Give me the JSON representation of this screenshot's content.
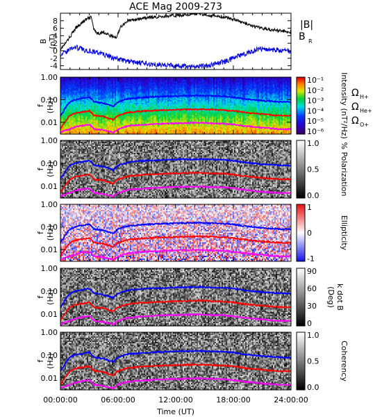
{
  "chart_data": {
    "type": "line",
    "title": "ACE Mag 2009-273",
    "xlabel": "Time (UT)",
    "x_ticks": [
      "00:00:00",
      "06:00:00",
      "12:00:00",
      "18:00:00",
      "24:00:00"
    ],
    "x_range_hours": [
      0,
      24
    ],
    "panels": [
      {
        "kind": "line",
        "ylabel": "B",
        "yunit": "(nT)",
        "ylim": [
          -5,
          10
        ],
        "yticks": [
          "8",
          "6",
          "4",
          "2",
          "0",
          "-2",
          "-4"
        ],
        "series": [
          {
            "name": "|B|",
            "color": "#000000",
            "x": [
              0,
              0.4,
              0.8,
              1.2,
              1.6,
              2.0,
              2.4,
              2.8,
              3.2,
              3.5,
              3.8,
              4.5,
              5.2,
              5.8,
              6.3,
              7.0,
              8.0,
              9.0,
              10.0,
              11.0,
              12.0,
              13.0,
              14.0,
              15.0,
              16.0,
              17.0,
              18.0,
              19.0,
              20.0,
              21.0,
              22.0,
              23.0,
              24.0
            ],
            "y": [
              0.5,
              1.5,
              3.0,
              4.5,
              6.0,
              7.0,
              7.8,
              8.5,
              9.0,
              5.5,
              4.5,
              5.0,
              4.0,
              3.5,
              6.5,
              8.0,
              8.3,
              8.8,
              9.0,
              9.2,
              9.4,
              9.6,
              9.8,
              9.7,
              9.3,
              9.0,
              8.5,
              7.5,
              6.5,
              6.0,
              5.6,
              5.3,
              5.0
            ]
          },
          {
            "name": "B",
            "sub": "R",
            "color": "#0000dd",
            "x": [
              0,
              0.5,
              1.0,
              1.5,
              2.0,
              2.5,
              3.0,
              3.5,
              4.0,
              4.5,
              5.0,
              5.5,
              6.0,
              7.0,
              8.0,
              9.0,
              10.0,
              11.0,
              12.0,
              13.0,
              14.0,
              15.0,
              16.0,
              17.0,
              18.0,
              19.0,
              20.0,
              21.0,
              22.0,
              23.0,
              24.0
            ],
            "y": [
              -1.0,
              -0.5,
              0.5,
              1.0,
              0.6,
              0.2,
              0.0,
              -0.3,
              -0.5,
              -1.0,
              -1.5,
              -2.0,
              -2.2,
              -2.8,
              -3.2,
              -3.5,
              -3.6,
              -3.8,
              -4.0,
              -4.2,
              -4.2,
              -4.0,
              -3.6,
              -3.0,
              -2.0,
              -1.0,
              0.0,
              0.6,
              0.3,
              0.0,
              -0.2
            ]
          }
        ]
      },
      {
        "kind": "spectrogram",
        "ylabel": "f",
        "yunit": "(Hz)",
        "yticks": [
          "1.00",
          "0.10",
          "0.01"
        ],
        "ylim": [
          0.003,
          1.0
        ],
        "colorbar_label": "Intensity (nT²/Hz)",
        "colorbar_ticks": [
          "10⁻¹",
          "10⁻²",
          "10⁻³",
          "10⁻⁴",
          "10⁻⁵",
          "10⁻⁶"
        ],
        "colorscale": "rainbow"
      },
      {
        "kind": "spectrogram",
        "ylabel": "f",
        "yunit": "(Hz)",
        "yticks": [
          "1.00",
          "0.10",
          "0.01"
        ],
        "ylim": [
          0.003,
          1.0
        ],
        "colorbar_label": "% Polarization",
        "colorbar_ticks": [
          "1.0",
          "0.5",
          "0.0"
        ],
        "colorscale": "gray"
      },
      {
        "kind": "spectrogram",
        "ylabel": "f",
        "yunit": "(Hz)",
        "yticks": [
          "1.00",
          "0.10",
          "0.01"
        ],
        "ylim": [
          0.003,
          1.0
        ],
        "colorbar_label": "Ellipticity",
        "colorbar_ticks": [
          "1",
          "0",
          "-1"
        ],
        "colorscale": "bluewhitered"
      },
      {
        "kind": "spectrogram",
        "ylabel": "f",
        "yunit": "(Hz)",
        "yticks": [
          "1.00",
          "0.10",
          "0.01"
        ],
        "ylim": [
          0.003,
          1.0
        ],
        "colorbar_label": "k dot B",
        "colorbar_label2": "(Deg)",
        "colorbar_ticks": [
          "90",
          "60",
          "30",
          "0"
        ],
        "colorscale": "gray"
      },
      {
        "kind": "spectrogram",
        "ylabel": "f",
        "yunit": "(Hz)",
        "yticks": [
          "1.00",
          "0.10",
          "0.01"
        ],
        "ylim": [
          0.003,
          1.0
        ],
        "colorbar_label": "Coherency",
        "colorbar_ticks": [
          "1.0",
          "0.5",
          "0.0"
        ],
        "colorscale": "gray"
      }
    ],
    "gyrofrequency_legend": [
      {
        "symbol": "Ω",
        "sub": "H+",
        "color": "#0000ff"
      },
      {
        "symbol": "Ω",
        "sub": "He+",
        "color": "#ff0000"
      },
      {
        "symbol": "Ω",
        "sub": "O+",
        "color": "#ff00ff"
      }
    ],
    "gyrofrequency_curves_hz": [
      {
        "name": "H+",
        "color": "#0000ff",
        "x": [
          0,
          0.3,
          0.6,
          1.0,
          1.5,
          2.0,
          2.5,
          3.0,
          3.5,
          4.0,
          4.5,
          5.0,
          5.5,
          6.0,
          7.0,
          8.0,
          9.0,
          10.0,
          11.0,
          12.0,
          13.0,
          14.0,
          15.0,
          16.0,
          17.0,
          18.0,
          19.0,
          20.0,
          21.0,
          22.0,
          23.0,
          24.0
        ],
        "y": [
          0.02,
          0.03,
          0.05,
          0.08,
          0.1,
          0.11,
          0.12,
          0.13,
          0.08,
          0.075,
          0.07,
          0.06,
          0.05,
          0.08,
          0.11,
          0.12,
          0.13,
          0.135,
          0.14,
          0.145,
          0.15,
          0.15,
          0.15,
          0.145,
          0.14,
          0.13,
          0.11,
          0.1,
          0.09,
          0.085,
          0.08,
          0.08
        ]
      },
      {
        "name": "He+",
        "color": "#ff0000",
        "x": [
          0,
          0.3,
          0.6,
          1.0,
          1.5,
          2.0,
          2.5,
          3.0,
          3.5,
          4.0,
          4.5,
          5.0,
          5.5,
          6.0,
          7.0,
          8.0,
          9.0,
          10.0,
          11.0,
          12.0,
          13.0,
          14.0,
          15.0,
          16.0,
          17.0,
          18.0,
          19.0,
          20.0,
          21.0,
          22.0,
          23.0,
          24.0
        ],
        "y": [
          0.005,
          0.008,
          0.012,
          0.02,
          0.025,
          0.028,
          0.03,
          0.032,
          0.02,
          0.019,
          0.018,
          0.015,
          0.013,
          0.02,
          0.027,
          0.03,
          0.032,
          0.034,
          0.035,
          0.036,
          0.037,
          0.038,
          0.038,
          0.036,
          0.035,
          0.032,
          0.028,
          0.025,
          0.023,
          0.021,
          0.02,
          0.02
        ]
      },
      {
        "name": "O+",
        "color": "#ff00ff",
        "x": [
          0,
          0.3,
          0.6,
          1.0,
          1.5,
          2.0,
          2.5,
          3.0,
          3.5,
          4.0,
          4.5,
          5.0,
          5.5,
          6.0,
          7.0,
          8.0,
          9.0,
          10.0,
          11.0,
          12.0,
          13.0,
          14.0,
          15.0,
          16.0,
          17.0,
          18.0,
          19.0,
          20.0,
          21.0,
          22.0,
          23.0,
          24.0
        ],
        "y": [
          0.0035,
          0.004,
          0.0045,
          0.005,
          0.0062,
          0.007,
          0.0075,
          0.008,
          0.005,
          0.0048,
          0.0045,
          0.004,
          0.0035,
          0.005,
          0.0068,
          0.0075,
          0.008,
          0.0085,
          0.0088,
          0.009,
          0.0093,
          0.0095,
          0.0095,
          0.009,
          0.0088,
          0.008,
          0.007,
          0.0063,
          0.0058,
          0.0053,
          0.005,
          0.005
        ]
      }
    ]
  }
}
